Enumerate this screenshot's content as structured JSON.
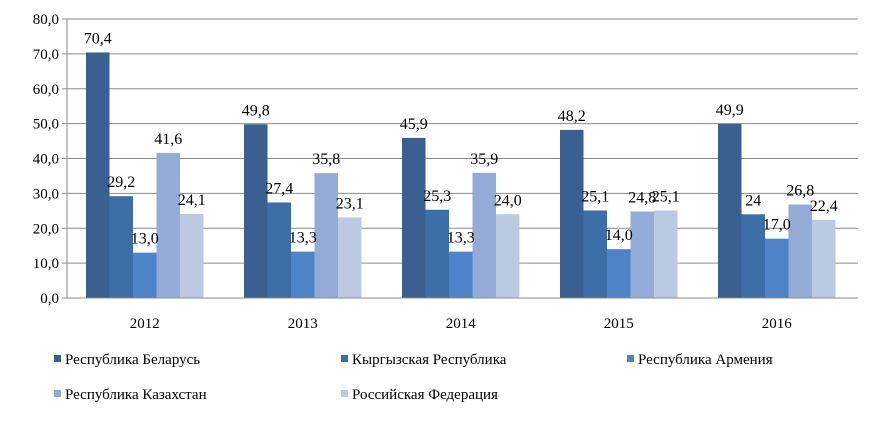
{
  "chart_data": {
    "type": "bar",
    "title": "",
    "xlabel": "",
    "ylabel": "",
    "categories": [
      "2012",
      "2013",
      "2014",
      "2015",
      "2016"
    ],
    "ylim": [
      0,
      80
    ],
    "yticks": [
      0,
      10,
      20,
      30,
      40,
      50,
      60,
      70,
      80
    ],
    "ytick_labels": [
      "0,0",
      "10,0",
      "20,0",
      "30,0",
      "40,0",
      "50,0",
      "60,0",
      "70,0",
      "80,0"
    ],
    "grid": true,
    "legend_position": "bottom",
    "series": [
      {
        "name": "Республика Беларусь",
        "color": "#3a5f91",
        "values": [
          70.4,
          49.8,
          45.9,
          48.2,
          49.9
        ],
        "labels": [
          "70,4",
          "49,8",
          "45,9",
          "48,2",
          "49,9"
        ]
      },
      {
        "name": "Кыргызская Республика",
        "color": "#3d6ea8",
        "values": [
          29.2,
          27.4,
          25.3,
          25.1,
          24
        ],
        "labels": [
          "29,2",
          "27,4",
          "25,3",
          "25,1",
          "24"
        ]
      },
      {
        "name": "Республика Армения",
        "color": "#4f83c7",
        "values": [
          13.0,
          13.3,
          13.3,
          14.0,
          17.0
        ],
        "labels": [
          "13,0",
          "13,3",
          "13,3",
          "14,0",
          "17,0"
        ]
      },
      {
        "name": "Республика Казахстан",
        "color": "#93abd6",
        "values": [
          41.6,
          35.8,
          35.9,
          24.8,
          26.8
        ],
        "labels": [
          "41,6",
          "35,8",
          "35,9",
          "24,8",
          "26,8"
        ]
      },
      {
        "name": "Российская Федерация",
        "color": "#bcc9e2",
        "values": [
          24.1,
          23.1,
          24.0,
          25.1,
          22.4
        ],
        "labels": [
          "24,1",
          "23,1",
          "24,0",
          "25,1",
          "22,4"
        ]
      }
    ]
  }
}
